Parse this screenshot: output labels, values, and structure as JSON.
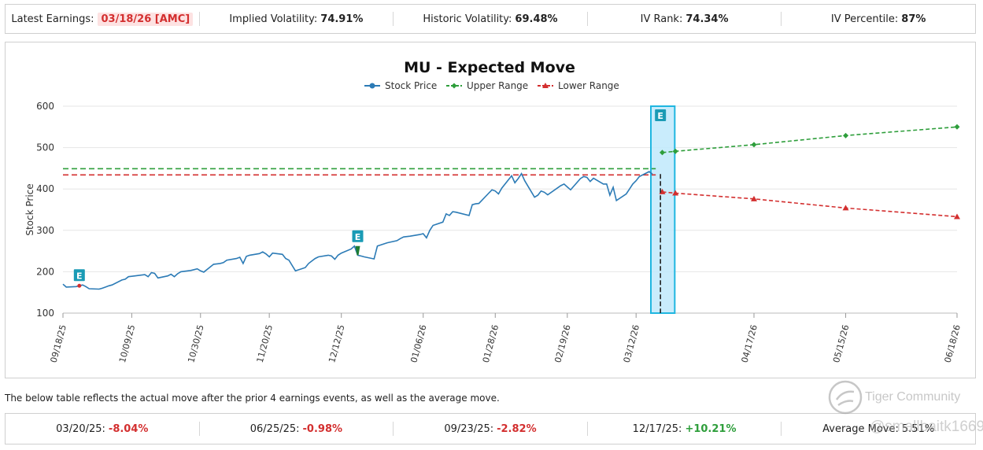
{
  "stats": {
    "earnings_label": "Latest Earnings:",
    "earnings_value": "03/18/26 [AMC]",
    "iv_label": "Implied Volatility:",
    "iv_value": "74.91%",
    "hv_label": "Historic Volatility:",
    "hv_value": "69.48%",
    "ivrank_label": "IV Rank:",
    "ivrank_value": "74.34%",
    "ivpct_label": "IV Percentile:",
    "ivpct_value": "87%"
  },
  "chart_data": {
    "type": "line",
    "title": "MU - Expected Move",
    "ylabel": "Stock Price",
    "xlabel": "",
    "ylim": [
      100,
      600
    ],
    "yticks": [
      100,
      200,
      300,
      400,
      500,
      600
    ],
    "legend": [
      "Stock Price",
      "Upper Range",
      "Lower Range"
    ],
    "legend_position": "top-center",
    "date_range": [
      "2025-09-18",
      "2026-06-18"
    ],
    "xtick_labels": [
      "09/18/25",
      "10/09/25",
      "10/30/25",
      "11/20/25",
      "12/12/25",
      "01/06/26",
      "01/28/26",
      "02/19/26",
      "03/12/26",
      "04/17/26",
      "05/15/26",
      "06/18/26"
    ],
    "xtick_dates": [
      "2025-09-18",
      "2025-10-09",
      "2025-10-30",
      "2025-11-20",
      "2025-12-12",
      "2026-01-06",
      "2026-01-28",
      "2026-02-19",
      "2026-03-12",
      "2026-04-17",
      "2026-05-15",
      "2026-06-18"
    ],
    "series": [
      {
        "name": "Stock Price",
        "color": "#2c7bb6",
        "points": [
          [
            "2025-09-18",
            170
          ],
          [
            "2025-09-19",
            163
          ],
          [
            "2025-09-22",
            164
          ],
          [
            "2025-09-23",
            166
          ],
          [
            "2025-09-24",
            168
          ],
          [
            "2025-09-25",
            164
          ],
          [
            "2025-09-26",
            159
          ],
          [
            "2025-09-29",
            158
          ],
          [
            "2025-09-30",
            160
          ],
          [
            "2025-10-01",
            163
          ],
          [
            "2025-10-02",
            166
          ],
          [
            "2025-10-03",
            168
          ],
          [
            "2025-10-06",
            180
          ],
          [
            "2025-10-07",
            182
          ],
          [
            "2025-10-08",
            188
          ],
          [
            "2025-10-09",
            189
          ],
          [
            "2025-10-10",
            190
          ],
          [
            "2025-10-13",
            193
          ],
          [
            "2025-10-14",
            188
          ],
          [
            "2025-10-15",
            198
          ],
          [
            "2025-10-16",
            196
          ],
          [
            "2025-10-17",
            185
          ],
          [
            "2025-10-20",
            190
          ],
          [
            "2025-10-21",
            194
          ],
          [
            "2025-10-22",
            188
          ],
          [
            "2025-10-23",
            195
          ],
          [
            "2025-10-24",
            200
          ],
          [
            "2025-10-27",
            203
          ],
          [
            "2025-10-28",
            205
          ],
          [
            "2025-10-29",
            207
          ],
          [
            "2025-10-30",
            202
          ],
          [
            "2025-10-31",
            199
          ],
          [
            "2025-11-03",
            218
          ],
          [
            "2025-11-04",
            219
          ],
          [
            "2025-11-05",
            220
          ],
          [
            "2025-11-06",
            222
          ],
          [
            "2025-11-07",
            228
          ],
          [
            "2025-11-10",
            232
          ],
          [
            "2025-11-11",
            235
          ],
          [
            "2025-11-12",
            220
          ],
          [
            "2025-11-13",
            237
          ],
          [
            "2025-11-14",
            240
          ],
          [
            "2025-11-17",
            244
          ],
          [
            "2025-11-18",
            248
          ],
          [
            "2025-11-19",
            243
          ],
          [
            "2025-11-20",
            236
          ],
          [
            "2025-11-21",
            245
          ],
          [
            "2025-11-24",
            242
          ],
          [
            "2025-11-25",
            232
          ],
          [
            "2025-11-26",
            228
          ],
          [
            "2025-11-28",
            202
          ],
          [
            "2025-12-01",
            210
          ],
          [
            "2025-12-02",
            220
          ],
          [
            "2025-12-03",
            226
          ],
          [
            "2025-12-04",
            232
          ],
          [
            "2025-12-05",
            236
          ],
          [
            "2025-12-08",
            240
          ],
          [
            "2025-12-09",
            238
          ],
          [
            "2025-12-10",
            230
          ],
          [
            "2025-12-11",
            240
          ],
          [
            "2025-12-12",
            245
          ],
          [
            "2025-12-15",
            255
          ],
          [
            "2025-12-16",
            262
          ],
          [
            "2025-12-17",
            240
          ],
          [
            "2025-12-18",
            238
          ],
          [
            "2025-12-19",
            236
          ],
          [
            "2025-12-22",
            231
          ],
          [
            "2025-12-23",
            262
          ],
          [
            "2025-12-26",
            270
          ],
          [
            "2025-12-29",
            275
          ],
          [
            "2025-12-30",
            280
          ],
          [
            "2025-12-31",
            284
          ],
          [
            "2026-01-02",
            286
          ],
          [
            "2026-01-05",
            290
          ],
          [
            "2026-01-06",
            292
          ],
          [
            "2026-01-07",
            282
          ],
          [
            "2026-01-08",
            300
          ],
          [
            "2026-01-09",
            312
          ],
          [
            "2026-01-12",
            320
          ],
          [
            "2026-01-13",
            340
          ],
          [
            "2026-01-14",
            336
          ],
          [
            "2026-01-15",
            345
          ],
          [
            "2026-01-16",
            344
          ],
          [
            "2026-01-20",
            336
          ],
          [
            "2026-01-21",
            362
          ],
          [
            "2026-01-22",
            364
          ],
          [
            "2026-01-23",
            365
          ],
          [
            "2026-01-26",
            390
          ],
          [
            "2026-01-27",
            398
          ],
          [
            "2026-01-28",
            395
          ],
          [
            "2026-01-29",
            388
          ],
          [
            "2026-01-30",
            402
          ],
          [
            "2026-02-02",
            432
          ],
          [
            "2026-02-03",
            415
          ],
          [
            "2026-02-04",
            425
          ],
          [
            "2026-02-05",
            437
          ],
          [
            "2026-02-06",
            420
          ],
          [
            "2026-02-09",
            380
          ],
          [
            "2026-02-10",
            385
          ],
          [
            "2026-02-11",
            395
          ],
          [
            "2026-02-12",
            392
          ],
          [
            "2026-02-13",
            386
          ],
          [
            "2026-02-17",
            408
          ],
          [
            "2026-02-18",
            412
          ],
          [
            "2026-02-19",
            405
          ],
          [
            "2026-02-20",
            398
          ],
          [
            "2026-02-23",
            425
          ],
          [
            "2026-02-24",
            430
          ],
          [
            "2026-02-25",
            428
          ],
          [
            "2026-02-26",
            418
          ],
          [
            "2026-02-27",
            426
          ],
          [
            "2026-03-02",
            412
          ],
          [
            "2026-03-03",
            412
          ],
          [
            "2026-03-04",
            385
          ],
          [
            "2026-03-05",
            404
          ],
          [
            "2026-03-06",
            372
          ],
          [
            "2026-03-09",
            388
          ],
          [
            "2026-03-10",
            400
          ],
          [
            "2026-03-11",
            412
          ],
          [
            "2026-03-12",
            420
          ],
          [
            "2026-03-13",
            430
          ],
          [
            "2026-03-16",
            442
          ],
          [
            "2026-03-17",
            436
          ]
        ]
      },
      {
        "name": "Upper Range",
        "color": "#2e9e3b",
        "points": [
          [
            "2026-03-20",
            488
          ],
          [
            "2026-03-24",
            491
          ],
          [
            "2026-04-17",
            507
          ],
          [
            "2026-05-15",
            529
          ],
          [
            "2026-06-18",
            550
          ]
        ]
      },
      {
        "name": "Lower Range",
        "color": "#d32f2f",
        "points": [
          [
            "2026-03-20",
            393
          ],
          [
            "2026-03-24",
            390
          ],
          [
            "2026-04-17",
            376
          ],
          [
            "2026-05-15",
            354
          ],
          [
            "2026-06-18",
            333
          ]
        ]
      }
    ],
    "reference_lines": [
      {
        "name": "Upper Expected Level",
        "value": 449,
        "color": "#2e9e3b",
        "from": "2025-09-18",
        "to": "2026-03-18"
      },
      {
        "name": "Lower Expected Level",
        "value": 434,
        "color": "#d32f2f",
        "from": "2025-09-18",
        "to": "2026-03-18"
      }
    ],
    "earnings_markers": [
      {
        "label": "E",
        "date": "2025-09-23",
        "move_value": 166,
        "color": "#d32f2f"
      },
      {
        "label": "E",
        "date": "2025-12-17",
        "move_value": 240,
        "color": "#1e7d32"
      },
      {
        "label": "E",
        "date": "2026-03-18",
        "move_value": 436,
        "color": "#1aa3c4"
      }
    ],
    "highlight_band": {
      "from": "2026-03-17",
      "to": "2026-03-19",
      "color": "#bfe9fb"
    }
  },
  "note": "The below table reflects the actual move after the prior 4 earnings events, as well as the average move.",
  "moves": [
    {
      "date_label": "03/20/25:",
      "value": "-8.04%",
      "sign": "neg"
    },
    {
      "date_label": "06/25/25:",
      "value": "-0.98%",
      "sign": "neg"
    },
    {
      "date_label": "09/23/25:",
      "value": "-2.82%",
      "sign": "neg"
    },
    {
      "date_label": "12/17/25:",
      "value": "+10.21%",
      "sign": "pos"
    },
    {
      "date_label": "Average Move:",
      "value": "5.51%",
      "sign": "none"
    }
  ],
  "watermark": {
    "brand": "Tiger Community",
    "user": "@smallbaitk1669"
  }
}
